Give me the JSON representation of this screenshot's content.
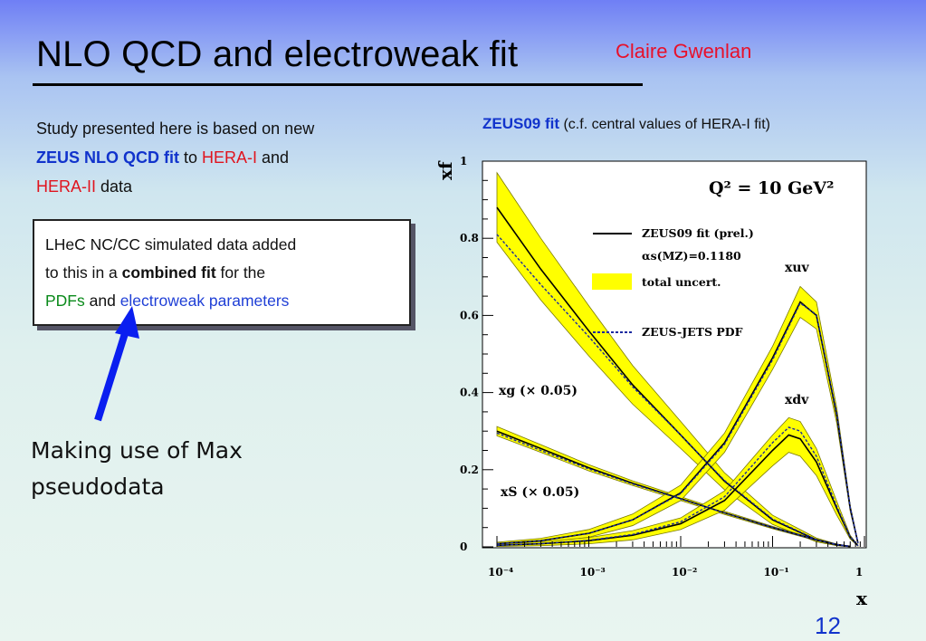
{
  "slide": {
    "title": "NLO QCD and electroweak fit",
    "author": "Claire Gwenlan",
    "intro_1": "Study presented here is based on new",
    "intro_zeus": "ZEUS NLO QCD fit",
    "intro_to": " to ",
    "intro_hera1": "HERA-I",
    "intro_and": " and",
    "intro_hera2": "HERA-II",
    "intro_data": " data",
    "box_1": "LHeC NC/CC simulated data added",
    "box_2a": "to this in a ",
    "box_2b": "combined fit",
    "box_2c": " for the",
    "box_3a": "PDFs",
    "box_3b": " and ",
    "box_3c": "electroweak parameters",
    "making_1": "Making use of Max",
    "making_2": "pseudodata",
    "fig_caption_bold": "ZEUS09 fit",
    "fig_caption_rest": " (c.f. central values of HERA-I fit)",
    "page_number": "12"
  },
  "colors": {
    "arrow": "#0a1ef0",
    "band": "#ffff00",
    "zeus_jets": "#1a2aa0"
  },
  "chart_data": {
    "type": "line",
    "title": "Q² = 10 GeV²",
    "xlabel": "x",
    "ylabel": "xf",
    "x_scale": "log",
    "xlim": [
      0.0001,
      1
    ],
    "ylim": [
      0,
      1
    ],
    "x_ticks": [
      "10⁻⁴",
      "10⁻³",
      "10⁻²",
      "10⁻¹",
      "1"
    ],
    "y_ticks": [
      "0",
      "0.2",
      "0.4",
      "0.6",
      "0.8",
      "1"
    ],
    "legend": {
      "fit": "ZEUS09 fit (prel.)",
      "alpha_s": "αs(MZ)=0.1180",
      "uncert": "total uncert.",
      "jets": "ZEUS-JETS PDF"
    },
    "curve_labels": {
      "xuv": "xuv",
      "xdv": "xdv",
      "xg": "xg (× 0.05)",
      "xS": "xS (× 0.05)"
    },
    "series": [
      {
        "name": "xg (× 0.05)",
        "x": [
          0.0001,
          0.0003,
          0.001,
          0.003,
          0.01,
          0.03,
          0.1,
          0.3,
          0.5,
          0.7
        ],
        "values": [
          0.88,
          0.72,
          0.56,
          0.42,
          0.29,
          0.17,
          0.07,
          0.018,
          0.005,
          0.001
        ],
        "band": [
          0.09,
          0.08,
          0.065,
          0.05,
          0.035,
          0.022,
          0.012,
          0.005,
          0.002,
          0.001
        ],
        "jets": [
          0.81,
          0.68,
          0.545,
          0.415,
          0.29,
          0.172,
          0.072,
          0.019,
          0.005,
          0.001
        ]
      },
      {
        "name": "xS (× 0.05)",
        "x": [
          0.0001,
          0.0003,
          0.001,
          0.003,
          0.01,
          0.03,
          0.1,
          0.3,
          0.5,
          0.7
        ],
        "values": [
          0.3,
          0.255,
          0.205,
          0.165,
          0.125,
          0.088,
          0.05,
          0.018,
          0.006,
          0.001
        ],
        "band": [
          0.012,
          0.01,
          0.008,
          0.006,
          0.005,
          0.004,
          0.003,
          0.002,
          0.001,
          0.0
        ],
        "jets": [
          0.295,
          0.25,
          0.202,
          0.163,
          0.124,
          0.088,
          0.05,
          0.018,
          0.006,
          0.001
        ]
      },
      {
        "name": "xuv",
        "x": [
          0.0001,
          0.0003,
          0.001,
          0.003,
          0.01,
          0.03,
          0.1,
          0.2,
          0.3,
          0.5,
          0.7,
          0.85
        ],
        "values": [
          0.008,
          0.016,
          0.035,
          0.07,
          0.14,
          0.27,
          0.49,
          0.635,
          0.6,
          0.34,
          0.1,
          0.01
        ],
        "band": [
          0.004,
          0.006,
          0.01,
          0.015,
          0.02,
          0.025,
          0.03,
          0.04,
          0.035,
          0.02,
          0.008,
          0.002
        ],
        "jets": [
          0.008,
          0.016,
          0.035,
          0.07,
          0.138,
          0.266,
          0.485,
          0.632,
          0.602,
          0.345,
          0.102,
          0.01
        ]
      },
      {
        "name": "xdv",
        "x": [
          0.0001,
          0.0003,
          0.001,
          0.003,
          0.01,
          0.03,
          0.1,
          0.15,
          0.2,
          0.3,
          0.5,
          0.7,
          0.85
        ],
        "values": [
          0.004,
          0.008,
          0.016,
          0.03,
          0.06,
          0.12,
          0.25,
          0.29,
          0.28,
          0.22,
          0.1,
          0.025,
          0.003
        ],
        "band": [
          0.003,
          0.005,
          0.008,
          0.012,
          0.015,
          0.025,
          0.04,
          0.045,
          0.045,
          0.035,
          0.018,
          0.005,
          0.001
        ],
        "jets": [
          0.004,
          0.008,
          0.017,
          0.032,
          0.065,
          0.13,
          0.27,
          0.31,
          0.3,
          0.235,
          0.105,
          0.026,
          0.003
        ]
      }
    ]
  }
}
